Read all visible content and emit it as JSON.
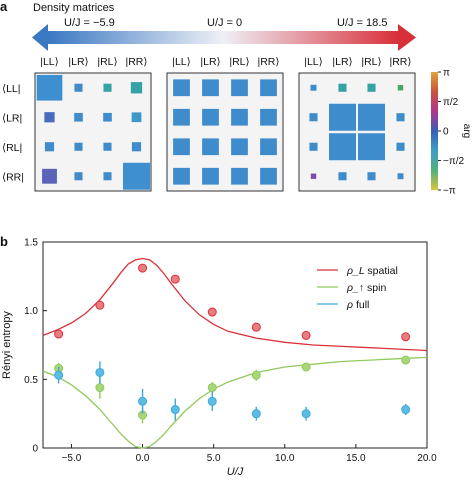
{
  "panel_a": {
    "letter": "a",
    "title": "Density matrices",
    "arrow_labels": [
      "U/J = −5.9",
      "U/J = 0",
      "U/J = 18.5"
    ],
    "basis_labels_top": [
      "|LL⟩",
      "|LR⟩",
      "|RL⟩",
      "|RR⟩"
    ],
    "basis_labels_left": [
      "⟨LL|",
      "⟨LR|",
      "⟨RL|",
      "⟨RR|"
    ],
    "colorbar": {
      "label": "arg",
      "ticks": [
        "π",
        "π/2",
        "0",
        "−π/2",
        "−π"
      ],
      "colors": [
        "#e0a33a",
        "#c9513a",
        "#b0378c",
        "#3a5fb8",
        "#3e9fc7",
        "#51b07a",
        "#d9c43a"
      ]
    },
    "matrices": [
      {
        "uj": "-5.9",
        "size": [
          [
            0.95,
            0.3,
            0.3,
            0.42
          ],
          [
            0.38,
            0.32,
            0.32,
            0.36
          ],
          [
            0.34,
            0.3,
            0.3,
            0.34
          ],
          [
            0.55,
            0.3,
            0.3,
            1.0
          ]
        ],
        "color": [
          [
            "#3e8fcf",
            "#3f8ccc",
            "#35a3a6",
            "#35a3a6"
          ],
          [
            "#4a6dbb",
            "#3f8ccc",
            "#3f8ccc",
            "#3a99c8"
          ],
          [
            "#3f8ccc",
            "#3f8ccc",
            "#3f8ccc",
            "#3f8ccc"
          ],
          [
            "#5a64b8",
            "#3f8ccc",
            "#3f8ccc",
            "#3e8fcf"
          ]
        ]
      },
      {
        "uj": "0",
        "size": [
          [
            0.62,
            0.62,
            0.62,
            0.62
          ],
          [
            0.62,
            0.62,
            0.62,
            0.62
          ],
          [
            0.62,
            0.62,
            0.62,
            0.62
          ],
          [
            0.62,
            0.62,
            0.62,
            0.62
          ]
        ],
        "color": [
          [
            "#3f8ccc",
            "#3f8ccc",
            "#3f8ccc",
            "#3f8ccc"
          ],
          [
            "#3f8ccc",
            "#3f8ccc",
            "#3f8ccc",
            "#3f8ccc"
          ],
          [
            "#3f8ccc",
            "#3f8ccc",
            "#3f8ccc",
            "#3f8ccc"
          ],
          [
            "#3f8ccc",
            "#3f8ccc",
            "#3f8ccc",
            "#3f8ccc"
          ]
        ]
      },
      {
        "uj": "18.5",
        "size": [
          [
            0.22,
            0.3,
            0.3,
            0.2
          ],
          [
            0.3,
            1.0,
            1.0,
            0.3
          ],
          [
            0.3,
            1.0,
            1.0,
            0.3
          ],
          [
            0.2,
            0.3,
            0.3,
            0.22
          ]
        ],
        "color": [
          [
            "#3f8ccc",
            "#35a3a6",
            "#35a3a6",
            "#41a86a"
          ],
          [
            "#3f8ccc",
            "#3f8ccc",
            "#3f8ccc",
            "#3f8ccc"
          ],
          [
            "#3f8ccc",
            "#3f8ccc",
            "#3f8ccc",
            "#3f8ccc"
          ],
          [
            "#7a4fa8",
            "#3f8ccc",
            "#3f8ccc",
            "#3f8ccc"
          ]
        ]
      }
    ]
  },
  "panel_b": {
    "letter": "b",
    "legend_suffix": [
      "spatial",
      "spin",
      "full"
    ]
  },
  "chart_data": {
    "type": "scatter",
    "title": "",
    "xlabel": "U/J",
    "ylabel": "Rényi entropy",
    "xlim": [
      -7,
      20
    ],
    "ylim": [
      0,
      1.5
    ],
    "xticks": [
      -5,
      0,
      5,
      10,
      15,
      20
    ],
    "xtick_labels": [
      "−5.0",
      "0.0",
      "5.0",
      "10.0",
      "15.0",
      "20.0"
    ],
    "yticks": [
      0,
      0.5,
      1.0,
      1.5
    ],
    "ytick_labels": [
      "0",
      "0.5",
      "1.0",
      "1.5"
    ],
    "legend_position": "top-right",
    "series": [
      {
        "name": "ρ_L",
        "color": "#d9313a",
        "fill": "#e87e82",
        "points": [
          {
            "x": -5.9,
            "y": 0.83,
            "err": 0.02
          },
          {
            "x": -3.0,
            "y": 1.04,
            "err": 0.03
          },
          {
            "x": 0.0,
            "y": 1.31,
            "err": 0.02
          },
          {
            "x": 2.3,
            "y": 1.23,
            "err": 0.02
          },
          {
            "x": 4.9,
            "y": 0.99,
            "err": 0.02
          },
          {
            "x": 8.0,
            "y": 0.88,
            "err": 0.02
          },
          {
            "x": 11.5,
            "y": 0.82,
            "err": 0.02
          },
          {
            "x": 18.5,
            "y": 0.81,
            "err": 0.02
          }
        ],
        "curve": {
          "x": [
            -7,
            -6,
            -5,
            -4,
            -3,
            -2,
            -1.5,
            -1,
            -0.5,
            0,
            0.5,
            1,
            1.5,
            2,
            3,
            4,
            5,
            6,
            8,
            10,
            12,
            14,
            16,
            18,
            20
          ],
          "y": [
            0.82,
            0.86,
            0.91,
            0.98,
            1.08,
            1.21,
            1.28,
            1.34,
            1.37,
            1.38,
            1.37,
            1.33,
            1.27,
            1.2,
            1.07,
            0.97,
            0.9,
            0.85,
            0.8,
            0.77,
            0.75,
            0.74,
            0.73,
            0.72,
            0.71
          ]
        }
      },
      {
        "name": "ρ_↑",
        "color": "#8fca5c",
        "fill": "#a8d67a",
        "points": [
          {
            "x": -5.9,
            "y": 0.58,
            "err": 0.04
          },
          {
            "x": -3.0,
            "y": 0.44,
            "err": 0.08
          },
          {
            "x": 0.0,
            "y": 0.24,
            "err": 0.06
          },
          {
            "x": 4.9,
            "y": 0.44,
            "err": 0.04
          },
          {
            "x": 8.0,
            "y": 0.53,
            "err": 0.04
          },
          {
            "x": 11.5,
            "y": 0.59,
            "err": 0.03
          },
          {
            "x": 18.5,
            "y": 0.64,
            "err": 0.02
          }
        ],
        "curve": {
          "x": [
            -7,
            -6,
            -5,
            -4,
            -3,
            -2,
            -1.5,
            -1,
            -0.5,
            0,
            0.5,
            1,
            1.5,
            2,
            3,
            4,
            5,
            6,
            8,
            10,
            12,
            14,
            16,
            18,
            20
          ],
          "y": [
            0.56,
            0.52,
            0.46,
            0.38,
            0.28,
            0.16,
            0.1,
            0.05,
            0.01,
            0.0,
            0.01,
            0.05,
            0.1,
            0.16,
            0.27,
            0.36,
            0.43,
            0.48,
            0.55,
            0.59,
            0.61,
            0.63,
            0.64,
            0.65,
            0.66
          ]
        }
      },
      {
        "name": "ρ",
        "color": "#3ea8d8",
        "fill": "#5bbde6",
        "points": [
          {
            "x": -5.9,
            "y": 0.53,
            "err": 0.06
          },
          {
            "x": -3.0,
            "y": 0.55,
            "err": 0.08
          },
          {
            "x": 0.0,
            "y": 0.34,
            "err": 0.09
          },
          {
            "x": 2.3,
            "y": 0.28,
            "err": 0.08
          },
          {
            "x": 4.9,
            "y": 0.34,
            "err": 0.07
          },
          {
            "x": 8.0,
            "y": 0.25,
            "err": 0.05
          },
          {
            "x": 11.5,
            "y": 0.25,
            "err": 0.05
          },
          {
            "x": 18.5,
            "y": 0.28,
            "err": 0.04
          }
        ]
      }
    ]
  }
}
